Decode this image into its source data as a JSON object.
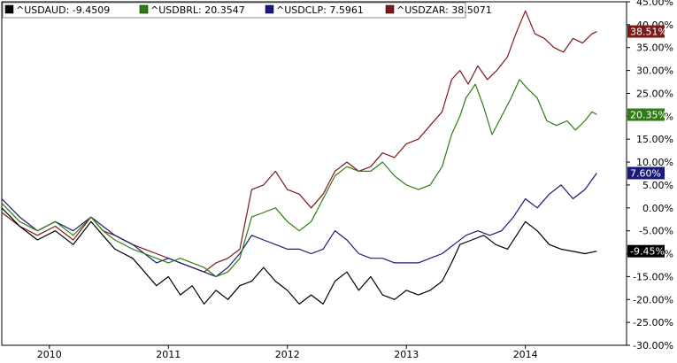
{
  "chart_data": {
    "type": "line",
    "y_unit": "%",
    "ylim": [
      -30,
      45
    ],
    "xlim": [
      2009.6,
      2014.85
    ],
    "y_ticks": [
      "45.00%",
      "40.00%",
      "35.00%",
      "30.00%",
      "25.00%",
      "20.00%",
      "15.00%",
      "10.00%",
      "5.00%",
      "0.00%",
      "-5.00%",
      "-10.00%",
      "-15.00%",
      "-20.00%",
      "-25.00%",
      "-30.00%"
    ],
    "y_tick_values": [
      45,
      40,
      35,
      30,
      25,
      20,
      15,
      10,
      5,
      0,
      -5,
      -10,
      -15,
      -20,
      -25,
      -30
    ],
    "x_ticks": [
      "2010",
      "2011",
      "2012",
      "2013",
      "2014"
    ],
    "x_tick_values": [
      2010,
      2011,
      2012,
      2013,
      2014
    ],
    "grid": false,
    "legend_position": "top-left",
    "series": [
      {
        "name": "^USDAUD",
        "legend_value": "-9.4509",
        "badge": "-9.45%",
        "color": "#000000",
        "points": [
          [
            2009.6,
            0
          ],
          [
            2009.75,
            -4
          ],
          [
            2009.9,
            -7
          ],
          [
            2010.05,
            -5
          ],
          [
            2010.2,
            -8
          ],
          [
            2010.35,
            -3
          ],
          [
            2010.45,
            -6
          ],
          [
            2010.55,
            -9
          ],
          [
            2010.7,
            -11
          ],
          [
            2010.8,
            -14
          ],
          [
            2010.9,
            -17
          ],
          [
            2011.0,
            -15
          ],
          [
            2011.1,
            -19
          ],
          [
            2011.2,
            -17
          ],
          [
            2011.3,
            -21
          ],
          [
            2011.4,
            -18
          ],
          [
            2011.5,
            -20
          ],
          [
            2011.6,
            -17
          ],
          [
            2011.7,
            -16
          ],
          [
            2011.8,
            -13
          ],
          [
            2011.9,
            -16
          ],
          [
            2012.0,
            -18
          ],
          [
            2012.1,
            -21
          ],
          [
            2012.2,
            -19
          ],
          [
            2012.3,
            -21
          ],
          [
            2012.4,
            -16
          ],
          [
            2012.5,
            -14
          ],
          [
            2012.6,
            -18
          ],
          [
            2012.7,
            -15
          ],
          [
            2012.8,
            -19
          ],
          [
            2012.9,
            -20
          ],
          [
            2013.0,
            -18
          ],
          [
            2013.1,
            -19
          ],
          [
            2013.2,
            -18
          ],
          [
            2013.3,
            -16
          ],
          [
            2013.38,
            -12
          ],
          [
            2013.45,
            -8
          ],
          [
            2013.55,
            -7
          ],
          [
            2013.65,
            -6
          ],
          [
            2013.75,
            -8
          ],
          [
            2013.85,
            -9
          ],
          [
            2013.95,
            -5
          ],
          [
            2014.0,
            -3
          ],
          [
            2014.1,
            -5
          ],
          [
            2014.2,
            -8
          ],
          [
            2014.3,
            -9
          ],
          [
            2014.4,
            -9.5
          ],
          [
            2014.5,
            -10
          ],
          [
            2014.6,
            -9.45
          ]
        ]
      },
      {
        "name": "^USDBRL",
        "legend_value": "20.3547",
        "badge": "20.35%",
        "color": "#2e7d14",
        "points": [
          [
            2009.6,
            1
          ],
          [
            2009.75,
            -3
          ],
          [
            2009.9,
            -5
          ],
          [
            2010.05,
            -3
          ],
          [
            2010.2,
            -6
          ],
          [
            2010.35,
            -2
          ],
          [
            2010.45,
            -5
          ],
          [
            2010.55,
            -7
          ],
          [
            2010.7,
            -9
          ],
          [
            2010.8,
            -10
          ],
          [
            2010.9,
            -11
          ],
          [
            2011.0,
            -12
          ],
          [
            2011.1,
            -11
          ],
          [
            2011.2,
            -12
          ],
          [
            2011.3,
            -13
          ],
          [
            2011.4,
            -15
          ],
          [
            2011.5,
            -14
          ],
          [
            2011.6,
            -11
          ],
          [
            2011.7,
            -2
          ],
          [
            2011.8,
            -1
          ],
          [
            2011.9,
            0
          ],
          [
            2012.0,
            -3
          ],
          [
            2012.1,
            -5
          ],
          [
            2012.2,
            -3
          ],
          [
            2012.3,
            2
          ],
          [
            2012.4,
            7
          ],
          [
            2012.5,
            9
          ],
          [
            2012.6,
            8
          ],
          [
            2012.7,
            8
          ],
          [
            2012.8,
            10
          ],
          [
            2012.9,
            7
          ],
          [
            2013.0,
            5
          ],
          [
            2013.1,
            4
          ],
          [
            2013.2,
            5
          ],
          [
            2013.3,
            9
          ],
          [
            2013.38,
            16
          ],
          [
            2013.45,
            20
          ],
          [
            2013.5,
            24
          ],
          [
            2013.58,
            27
          ],
          [
            2013.65,
            22
          ],
          [
            2013.72,
            16
          ],
          [
            2013.8,
            20
          ],
          [
            2013.88,
            24
          ],
          [
            2013.95,
            28
          ],
          [
            2014.02,
            26
          ],
          [
            2014.1,
            24
          ],
          [
            2014.18,
            19
          ],
          [
            2014.26,
            18
          ],
          [
            2014.35,
            19
          ],
          [
            2014.42,
            17
          ],
          [
            2014.5,
            19
          ],
          [
            2014.56,
            21
          ],
          [
            2014.6,
            20.35
          ]
        ]
      },
      {
        "name": "^USDCLP",
        "legend_value": "7.5961",
        "badge": "7.60%",
        "color": "#1a1a7a",
        "points": [
          [
            2009.6,
            2
          ],
          [
            2009.75,
            -2
          ],
          [
            2009.9,
            -5
          ],
          [
            2010.05,
            -3
          ],
          [
            2010.2,
            -5
          ],
          [
            2010.35,
            -2
          ],
          [
            2010.45,
            -4
          ],
          [
            2010.55,
            -6
          ],
          [
            2010.7,
            -8
          ],
          [
            2010.8,
            -10
          ],
          [
            2010.9,
            -12
          ],
          [
            2011.0,
            -11
          ],
          [
            2011.1,
            -12
          ],
          [
            2011.2,
            -13
          ],
          [
            2011.3,
            -14
          ],
          [
            2011.4,
            -15
          ],
          [
            2011.5,
            -13
          ],
          [
            2011.6,
            -10
          ],
          [
            2011.7,
            -6
          ],
          [
            2011.8,
            -7
          ],
          [
            2011.9,
            -8
          ],
          [
            2012.0,
            -9
          ],
          [
            2012.1,
            -9
          ],
          [
            2012.2,
            -10
          ],
          [
            2012.3,
            -9
          ],
          [
            2012.4,
            -5
          ],
          [
            2012.5,
            -7
          ],
          [
            2012.6,
            -10
          ],
          [
            2012.7,
            -11
          ],
          [
            2012.8,
            -11
          ],
          [
            2012.9,
            -12
          ],
          [
            2013.0,
            -12
          ],
          [
            2013.1,
            -12
          ],
          [
            2013.2,
            -11
          ],
          [
            2013.3,
            -10
          ],
          [
            2013.4,
            -8
          ],
          [
            2013.5,
            -6
          ],
          [
            2013.6,
            -5
          ],
          [
            2013.7,
            -6
          ],
          [
            2013.8,
            -5
          ],
          [
            2013.9,
            -2
          ],
          [
            2014.0,
            2
          ],
          [
            2014.1,
            0
          ],
          [
            2014.2,
            3
          ],
          [
            2014.3,
            5
          ],
          [
            2014.4,
            2
          ],
          [
            2014.5,
            4
          ],
          [
            2014.6,
            7.6
          ]
        ]
      },
      {
        "name": "^USDZAR",
        "legend_value": "38.5071",
        "badge": "38.51%",
        "color": "#7b1a1a",
        "points": [
          [
            2009.6,
            -1
          ],
          [
            2009.75,
            -4
          ],
          [
            2009.9,
            -6
          ],
          [
            2010.05,
            -4
          ],
          [
            2010.2,
            -7
          ],
          [
            2010.35,
            -2
          ],
          [
            2010.45,
            -5
          ],
          [
            2010.55,
            -6
          ],
          [
            2010.7,
            -8
          ],
          [
            2010.8,
            -9
          ],
          [
            2010.9,
            -10
          ],
          [
            2011.0,
            -11
          ],
          [
            2011.1,
            -12
          ],
          [
            2011.2,
            -13
          ],
          [
            2011.3,
            -14
          ],
          [
            2011.4,
            -12
          ],
          [
            2011.5,
            -11
          ],
          [
            2011.6,
            -9
          ],
          [
            2011.7,
            4
          ],
          [
            2011.8,
            5
          ],
          [
            2011.9,
            8
          ],
          [
            2012.0,
            4
          ],
          [
            2012.1,
            3
          ],
          [
            2012.2,
            0
          ],
          [
            2012.3,
            3
          ],
          [
            2012.4,
            8
          ],
          [
            2012.5,
            10
          ],
          [
            2012.6,
            8
          ],
          [
            2012.7,
            9
          ],
          [
            2012.8,
            12
          ],
          [
            2012.9,
            11
          ],
          [
            2013.0,
            14
          ],
          [
            2013.1,
            15
          ],
          [
            2013.2,
            18
          ],
          [
            2013.3,
            21
          ],
          [
            2013.38,
            28
          ],
          [
            2013.45,
            30
          ],
          [
            2013.52,
            27
          ],
          [
            2013.6,
            31
          ],
          [
            2013.68,
            28
          ],
          [
            2013.76,
            30
          ],
          [
            2013.85,
            33
          ],
          [
            2013.92,
            38
          ],
          [
            2014.0,
            43
          ],
          [
            2014.08,
            38
          ],
          [
            2014.16,
            37
          ],
          [
            2014.24,
            35
          ],
          [
            2014.32,
            34
          ],
          [
            2014.4,
            37
          ],
          [
            2014.48,
            36
          ],
          [
            2014.56,
            38
          ],
          [
            2014.6,
            38.51
          ]
        ]
      }
    ]
  }
}
